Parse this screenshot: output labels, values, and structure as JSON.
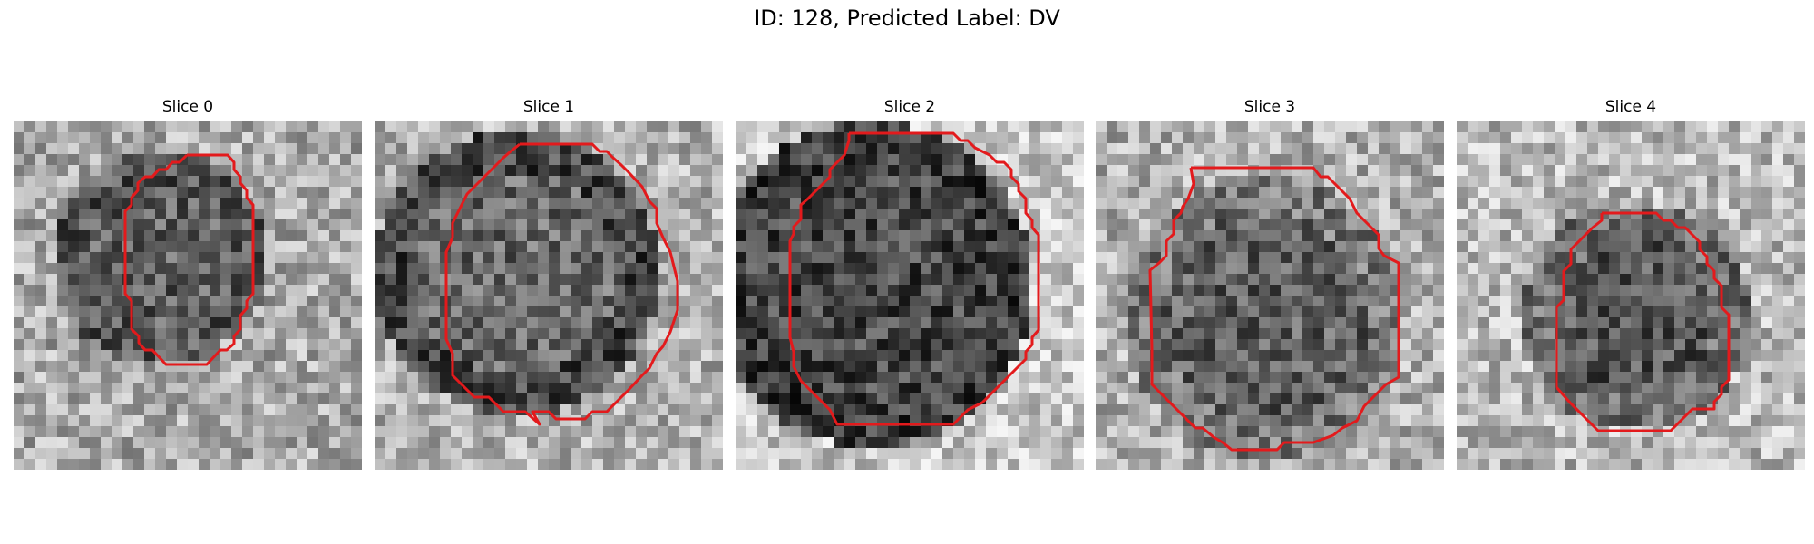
{
  "figure": {
    "title": "ID: 128, Predicted Label: DV"
  },
  "colors": {
    "contour": "#e31a1c",
    "colormap": "gray"
  },
  "slices": [
    {
      "label": "Slice 0"
    },
    {
      "label": "Slice 1"
    },
    {
      "label": "Slice 2"
    },
    {
      "label": "Slice 3"
    },
    {
      "label": "Slice 4"
    }
  ]
}
